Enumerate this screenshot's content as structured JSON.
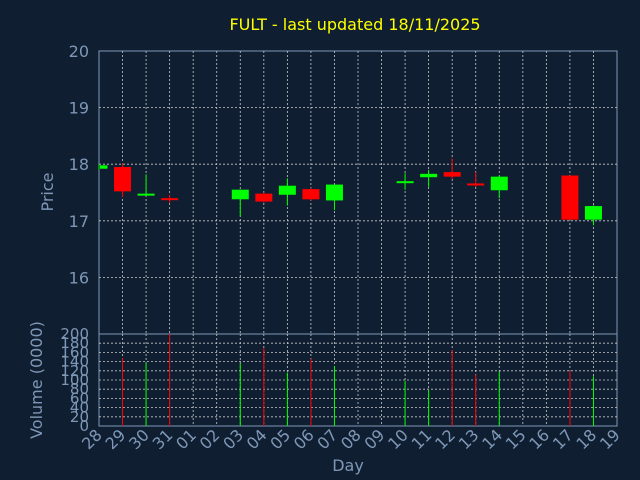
{
  "chart_data": {
    "type": "candlestick",
    "title": "FULT - last updated 18/11/2025",
    "xlabel": "Day",
    "price_panel": {
      "ylabel": "Price",
      "ylim": [
        15.0,
        20.0
      ],
      "yticks": [
        "16",
        "17",
        "18",
        "19",
        "20"
      ]
    },
    "volume_panel": {
      "ylabel": "Volume (0000)",
      "ylim": [
        0,
        200
      ],
      "yticks": [
        "0",
        "20",
        "40",
        "60",
        "80",
        "100",
        "120",
        "140",
        "160",
        "180",
        "200"
      ]
    },
    "grid": true,
    "x_ticks": [
      "28",
      "29",
      "30",
      "31",
      "01",
      "02",
      "03",
      "04",
      "05",
      "06",
      "07",
      "08",
      "09",
      "10",
      "11",
      "12",
      "13",
      "14",
      "15",
      "16",
      "17",
      "18",
      "19"
    ],
    "candles": [
      {
        "day": "28",
        "open": 17.92,
        "high": 18.0,
        "low": 17.9,
        "close": 17.98,
        "volume": 0
      },
      {
        "day": "29",
        "open": 17.95,
        "high": 18.02,
        "low": 17.42,
        "close": 17.52,
        "volume": 148
      },
      {
        "day": "30",
        "open": 17.46,
        "high": 17.82,
        "low": 17.44,
        "close": 17.48,
        "volume": 138
      },
      {
        "day": "31",
        "open": 17.4,
        "high": 17.46,
        "low": 17.32,
        "close": 17.38,
        "volume": 200
      },
      {
        "day": "03",
        "open": 17.38,
        "high": 17.55,
        "low": 17.08,
        "close": 17.55,
        "volume": 136
      },
      {
        "day": "04",
        "open": 17.48,
        "high": 17.5,
        "low": 17.32,
        "close": 17.34,
        "volume": 170
      },
      {
        "day": "05",
        "open": 17.46,
        "high": 17.75,
        "low": 17.27,
        "close": 17.62,
        "volume": 116
      },
      {
        "day": "06",
        "open": 17.56,
        "high": 17.58,
        "low": 17.36,
        "close": 17.38,
        "volume": 146
      },
      {
        "day": "07",
        "open": 17.36,
        "high": 17.64,
        "low": 17.19,
        "close": 17.64,
        "volume": 130
      },
      {
        "day": "10",
        "open": 17.68,
        "high": 17.84,
        "low": 17.55,
        "close": 17.7,
        "volume": 98
      },
      {
        "day": "11",
        "open": 17.77,
        "high": 17.9,
        "low": 17.6,
        "close": 17.83,
        "volume": 78
      },
      {
        "day": "12",
        "open": 17.86,
        "high": 18.1,
        "low": 17.74,
        "close": 17.78,
        "volume": 165
      },
      {
        "day": "13",
        "open": 17.66,
        "high": 17.86,
        "low": 17.6,
        "close": 17.64,
        "volume": 112
      },
      {
        "day": "14",
        "open": 17.54,
        "high": 17.8,
        "low": 17.4,
        "close": 17.78,
        "volume": 118
      },
      {
        "day": "17",
        "open": 17.8,
        "high": 17.8,
        "low": 17.02,
        "close": 17.02,
        "volume": 120
      },
      {
        "day": "18",
        "open": 17.02,
        "high": 17.27,
        "low": 16.92,
        "close": 17.26,
        "volume": 108
      }
    ],
    "colors": {
      "up": "#00ff00",
      "down": "#ff0000",
      "background": "#0f1f31",
      "grid": "#c8c8c8",
      "text": "#7f97b6",
      "title": "#ffff00"
    }
  }
}
